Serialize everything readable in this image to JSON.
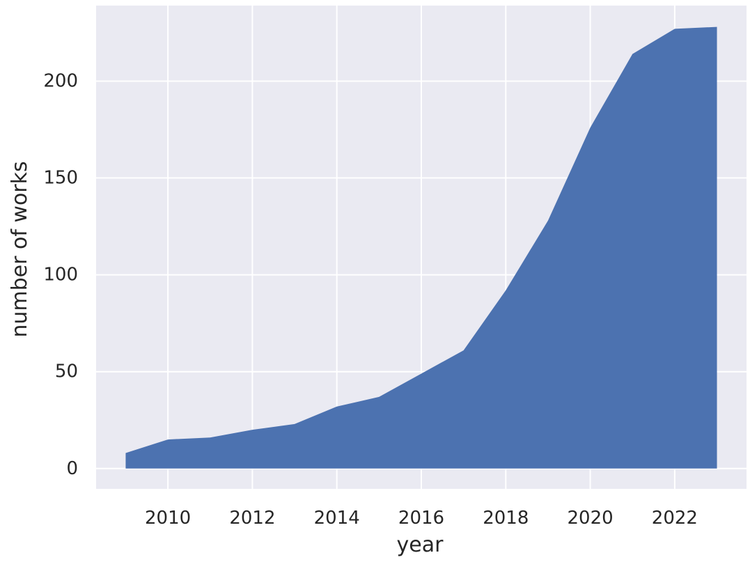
{
  "chart_data": {
    "type": "area",
    "x": [
      2009,
      2010,
      2011,
      2012,
      2013,
      2014,
      2015,
      2016,
      2017,
      2018,
      2019,
      2020,
      2021,
      2022,
      2023
    ],
    "series": [
      {
        "values": [
          8,
          15,
          16,
          20,
          23,
          32,
          37,
          49,
          61,
          92,
          128,
          176,
          214,
          227,
          228
        ]
      }
    ],
    "title": "",
    "xlabel": "year",
    "ylabel": "number of works",
    "xlim": [
      2008.3,
      2023.7
    ],
    "ylim": [
      -10.5,
      239
    ],
    "xticks": [
      2010,
      2012,
      2014,
      2016,
      2018,
      2020,
      2022
    ],
    "xtick_labels": [
      "2010",
      "2012",
      "2014",
      "2016",
      "2018",
      "2020",
      "2022"
    ],
    "yticks": [
      0,
      50,
      100,
      150,
      200
    ],
    "ytick_labels": [
      "0",
      "50",
      "100",
      "150",
      "200"
    ],
    "grid": true,
    "legend": "none",
    "colors": {
      "area": "#4C72B0",
      "plot_background": "#EAEAF2",
      "grid": "#FFFFFF",
      "text": "#262626"
    }
  }
}
